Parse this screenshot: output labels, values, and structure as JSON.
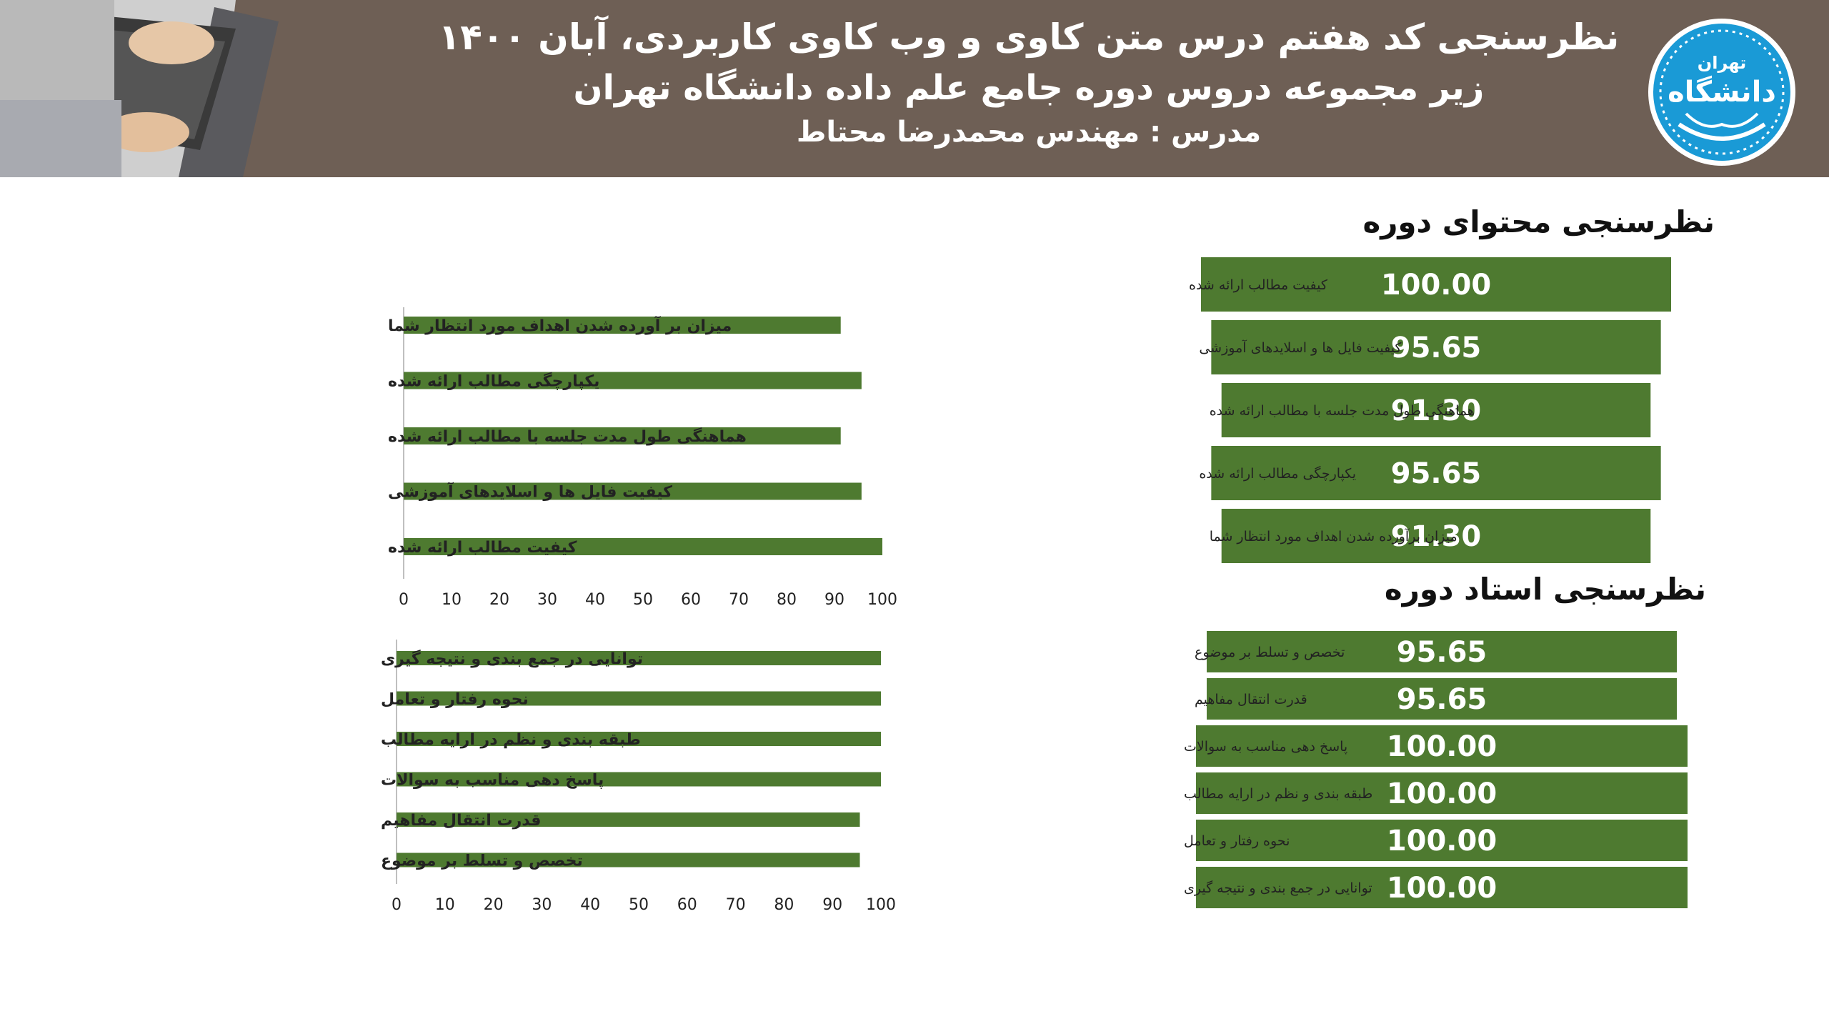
{
  "header": {
    "title_line1": "نظرسنجی کد هفتم درس متن کاوی و وب کاوی کاربردی، آبان ۱۴۰۰",
    "title_line2": "زیر مجموعه دروس دوره جامع علم داده دانشگاه تهران",
    "title_line3": "مدرس : مهندس محمدرضا محتاط",
    "logo_text_top": "تهران",
    "logo_text_main": "دانشگاه"
  },
  "sections": {
    "content_title": "نظرسنجی محتوای دوره",
    "instructor_title": "نظرسنجی استاد دوره"
  },
  "colors": {
    "bar": "#4e7a30",
    "bar_dark": "#3c6324",
    "header_bg": "#6e5f55"
  },
  "chart_data": [
    {
      "type": "bar",
      "orientation": "horizontal",
      "categories": [
        "میزان بر آورده شدن اهداف مورد انتظار شما",
        "یکپارچگی مطالب ارائه شده",
        "هماهنگی طول مدت جلسه با مطالب ارائه شده",
        "کیفیت فایل ها و اسلایدهای آموزشی",
        "کیفیت مطالب ارائه شده"
      ],
      "values": [
        91.3,
        95.65,
        91.3,
        95.65,
        100
      ],
      "xlim": [
        0,
        100
      ],
      "xticks": [
        "0",
        "10",
        "20",
        "30",
        "40",
        "50",
        "60",
        "70",
        "80",
        "90",
        "100"
      ],
      "grid": false
    },
    {
      "type": "bar",
      "orientation": "horizontal",
      "categories": [
        "توانایی در جمع بندی و نتیجه گیری",
        "نحوه رفتار و تعامل",
        "طبقه بندی و نظم در ارایه مطالب",
        "پاسخ دهی مناسب به سوالات",
        "قدرت انتقال مفاهیم",
        "تخصص و تسلط بر موضوع"
      ],
      "values": [
        100,
        100,
        100,
        100,
        95.65,
        95.65
      ],
      "xlim": [
        0,
        100
      ],
      "xticks": [
        "0",
        "10",
        "20",
        "30",
        "40",
        "50",
        "60",
        "70",
        "80",
        "90",
        "100"
      ],
      "grid": false
    },
    {
      "type": "bar",
      "orientation": "horizontal",
      "categories": [
        "کیفیت مطالب ارائه شده",
        "کیفیت فایل ها و اسلایدهای آموزشی",
        "هماهنگی طول مدت جلسه با مطالب ارائه شده",
        "یکپارچگی مطالب ارائه شده",
        "میزان برآورده شدن اهداف مورد انتظار شما"
      ],
      "values": [
        100,
        95.65,
        91.3,
        95.65,
        91.3
      ],
      "data_labels": [
        "100.00",
        "95.65",
        "91.30",
        "95.65",
        "91.30"
      ]
    },
    {
      "type": "bar",
      "orientation": "horizontal",
      "categories": [
        "تخصص و تسلط بر موضوع",
        "قدرت انتقال مفاهیم",
        "پاسخ دهی مناسب به سوالات",
        "طبقه بندی و نظم در ارایه مطالب",
        "نحوه رفتار و تعامل",
        "توانایی در جمع بندی و نتیجه گیری"
      ],
      "values": [
        95.65,
        95.65,
        100,
        100,
        100,
        100
      ],
      "data_labels": [
        "95.65",
        "95.65",
        "100.00",
        "100.00",
        "100.00",
        "100.00"
      ]
    }
  ]
}
